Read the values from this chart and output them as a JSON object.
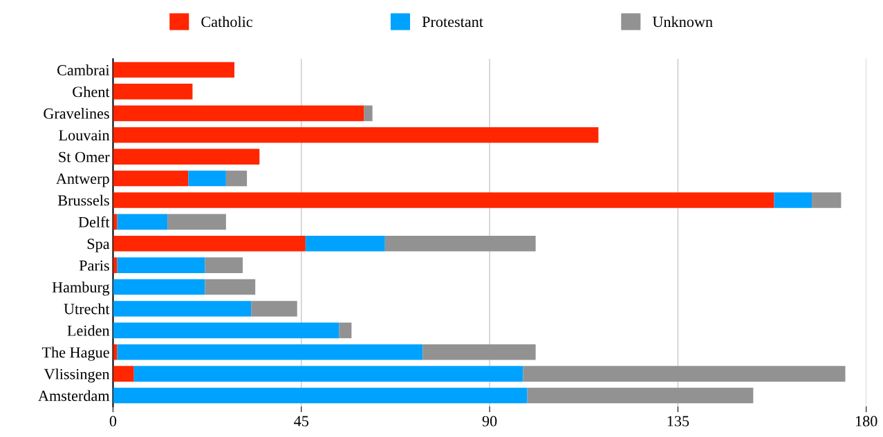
{
  "chart_data": {
    "type": "bar",
    "orientation": "horizontal",
    "stacked": true,
    "categories": [
      "Cambrai",
      "Ghent",
      "Gravelines",
      "Louvain",
      "St Omer",
      "Antwerp",
      "Brussels",
      "Delft",
      "Spa",
      "Paris",
      "Hamburg",
      "Utrecht",
      "Leiden",
      "The Hague",
      "Vlissingen",
      "Amsterdam"
    ],
    "series": [
      {
        "name": "Catholic",
        "color": "#ff2600",
        "values": [
          29,
          19,
          60,
          116,
          35,
          18,
          158,
          1,
          46,
          1,
          0,
          0,
          0,
          1,
          5,
          0
        ]
      },
      {
        "name": "Protestant",
        "color": "#00a2ff",
        "values": [
          0,
          0,
          0,
          0,
          0,
          9,
          9,
          12,
          19,
          21,
          22,
          33,
          54,
          73,
          93,
          99
        ]
      },
      {
        "name": "Unknown",
        "color": "#929292",
        "values": [
          0,
          0,
          2,
          0,
          0,
          5,
          7,
          14,
          36,
          9,
          12,
          11,
          3,
          27,
          77,
          54
        ]
      }
    ],
    "xlim": [
      0,
      180
    ],
    "xticks": [
      0,
      45,
      90,
      135,
      180
    ],
    "grid": "x",
    "legend": "top"
  }
}
